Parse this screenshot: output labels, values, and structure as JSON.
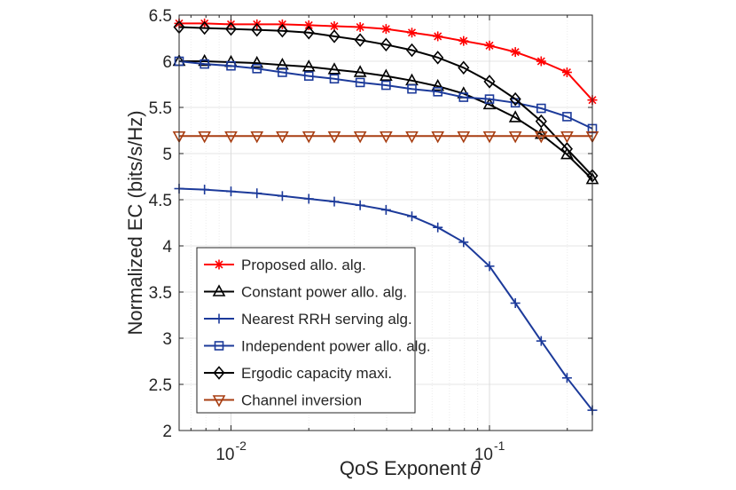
{
  "chart_data": {
    "type": "line",
    "xscale": "log",
    "xlabel": "QoS Exponent",
    "xlabel_symbol": "θ",
    "ylabel": "Normalized EC (bits/s/Hz)",
    "xlim": [
      0.0063,
      0.25
    ],
    "ylim": [
      2,
      6.5
    ],
    "grid": true,
    "legend_position": "bottom-left inside",
    "x_ticks": [
      {
        "value": 0.01,
        "base": "10",
        "exp": "-2"
      },
      {
        "value": 0.1,
        "base": "10",
        "exp": "-1"
      }
    ],
    "y_ticks": [
      {
        "value": 2,
        "label": "2"
      },
      {
        "value": 2.5,
        "label": "2.5"
      },
      {
        "value": 3,
        "label": "3"
      },
      {
        "value": 3.5,
        "label": "3.5"
      },
      {
        "value": 4,
        "label": "4"
      },
      {
        "value": 4.5,
        "label": "4.5"
      },
      {
        "value": 5,
        "label": "5"
      },
      {
        "value": 5.5,
        "label": "5.5"
      },
      {
        "value": 6,
        "label": "6"
      },
      {
        "value": 6.5,
        "label": "6.5"
      }
    ],
    "x": [
      0.0063,
      0.0079,
      0.01,
      0.0126,
      0.0158,
      0.02,
      0.0251,
      0.0316,
      0.0398,
      0.0501,
      0.0631,
      0.0794,
      0.1,
      0.1259,
      0.1585,
      0.1995,
      0.25
    ],
    "series": [
      {
        "name": "Proposed allo. alg.",
        "color": "#ff0000",
        "marker": "asterisk",
        "values": [
          6.41,
          6.41,
          6.4,
          6.4,
          6.4,
          6.39,
          6.38,
          6.37,
          6.35,
          6.31,
          6.27,
          6.22,
          6.17,
          6.1,
          6.0,
          5.88,
          5.58
        ]
      },
      {
        "name": "Constant power allo. alg.",
        "color": "#000000",
        "marker": "triangle-up",
        "values": [
          6.0,
          6.0,
          5.99,
          5.98,
          5.96,
          5.94,
          5.91,
          5.88,
          5.84,
          5.79,
          5.73,
          5.65,
          5.53,
          5.39,
          5.21,
          4.99,
          4.72
        ]
      },
      {
        "name": "Nearest RRH serving alg.",
        "color": "#1c3a9a",
        "marker": "plus",
        "values": [
          4.62,
          4.61,
          4.59,
          4.57,
          4.54,
          4.51,
          4.48,
          4.44,
          4.39,
          4.32,
          4.2,
          4.04,
          3.78,
          3.38,
          2.97,
          2.57,
          2.22
        ]
      },
      {
        "name": "Independent power allo. alg.",
        "color": "#1c3a9a",
        "marker": "square",
        "values": [
          6.0,
          5.97,
          5.95,
          5.92,
          5.88,
          5.84,
          5.81,
          5.77,
          5.74,
          5.7,
          5.67,
          5.61,
          5.59,
          5.55,
          5.49,
          5.4,
          5.27
        ]
      },
      {
        "name": "Ergodic capacity maxi.",
        "color": "#000000",
        "marker": "diamond",
        "values": [
          6.37,
          6.36,
          6.35,
          6.34,
          6.33,
          6.31,
          6.27,
          6.23,
          6.18,
          6.12,
          6.04,
          5.93,
          5.78,
          5.59,
          5.35,
          5.05,
          4.76
        ]
      },
      {
        "name": "Channel inversion",
        "color": "#a83e12",
        "marker": "triangle-down",
        "values": [
          5.19,
          5.19,
          5.19,
          5.19,
          5.19,
          5.19,
          5.19,
          5.19,
          5.19,
          5.19,
          5.19,
          5.19,
          5.19,
          5.19,
          5.19,
          5.19,
          5.19
        ]
      }
    ]
  }
}
